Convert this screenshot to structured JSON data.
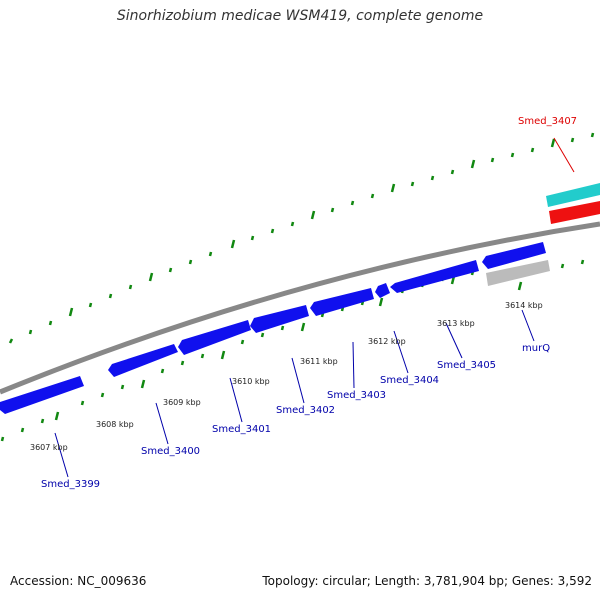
{
  "title": "Sinorhizobium medicae WSM419, complete genome",
  "footer": {
    "accession": "Accession: NC_009636",
    "summary": "Topology: circular; Length: 3,781,904 bp; Genes: 3,592"
  },
  "colors": {
    "forward_gene": "#1010ee",
    "reverse_gene": "#1010ee",
    "highlight_gene": "#ee1111",
    "cyan_feature": "#22cccc",
    "grey_feature": "#bbbbbb",
    "backbone": "#888888",
    "tick": "#118811",
    "label_blue": "#0000aa",
    "label_red": "#dd0000"
  },
  "ticks": [
    "3607 kbp",
    "3608 kbp",
    "3609 kbp",
    "3610 kbp",
    "3611 kbp",
    "3612 kbp",
    "3613 kbp",
    "3614 kbp"
  ],
  "gene_labels": [
    "Smed_3399",
    "Smed_3400",
    "Smed_3401",
    "Smed_3402",
    "Smed_3403",
    "Smed_3404",
    "Smed_3405",
    "murQ"
  ],
  "highlight_label": "Smed_3407"
}
